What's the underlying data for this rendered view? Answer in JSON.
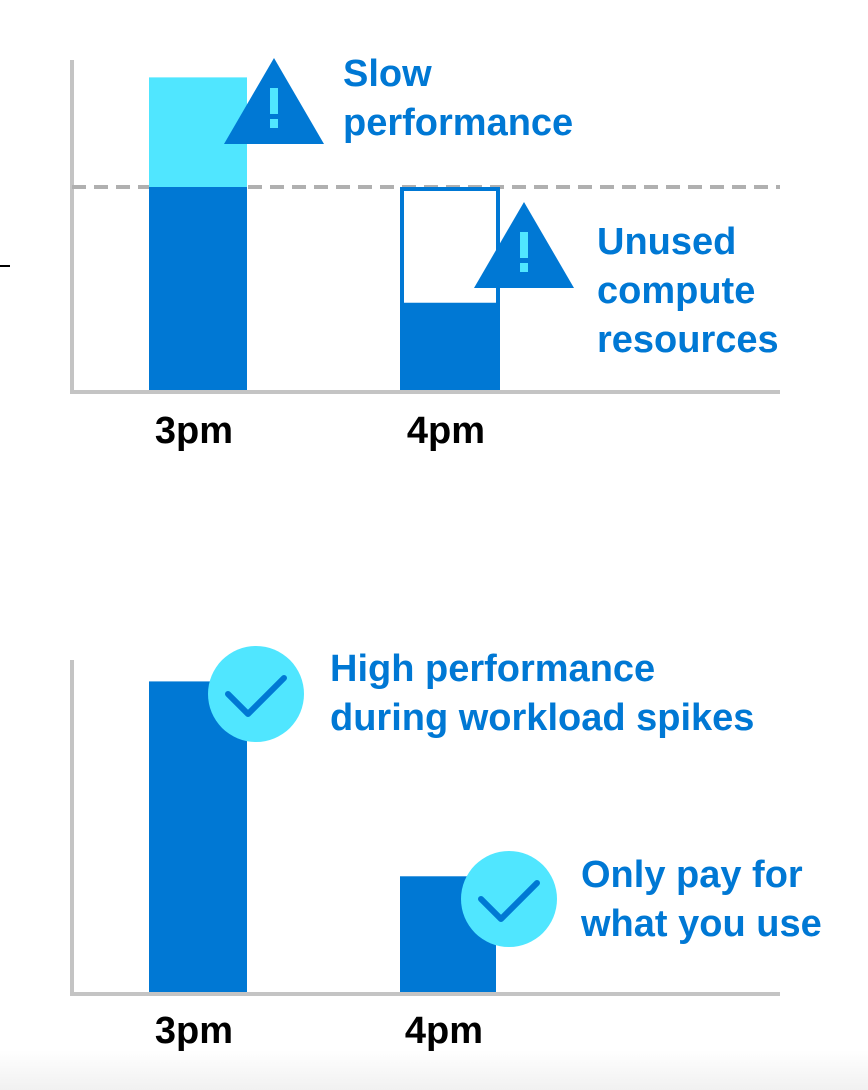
{
  "colors": {
    "blue": "#0078d4",
    "light_blue": "#50e6ff",
    "axis": "#c4c4c4",
    "dashed_line": "#b0b0b0",
    "text": "#000000"
  },
  "icons": {
    "warning": "warning-triangle-icon",
    "check": "checkmark-circle-icon"
  },
  "chart_data": [
    {
      "type": "bar",
      "categories": [
        "3pm",
        "4pm"
      ],
      "capacity_line": 1.0,
      "series": [
        {
          "values": [
            1.0,
            0.42
          ]
        },
        {
          "values": [
            0.54,
            0.0
          ]
        }
      ],
      "unused_capacity": [
        0.0,
        0.58
      ],
      "ylim": [
        0,
        1.55
      ],
      "grid": false,
      "annotations": [
        {
          "text": [
            "Slow",
            "performance"
          ],
          "icon": "warning-triangle-icon",
          "category": "3pm"
        },
        {
          "text": [
            "Unused",
            "compute",
            "resources"
          ],
          "icon": "warning-triangle-icon",
          "category": "4pm"
        }
      ]
    },
    {
      "type": "bar",
      "categories": [
        "3pm",
        "4pm"
      ],
      "series": [
        {
          "values": [
            1.53,
            0.57
          ]
        }
      ],
      "ylim": [
        0,
        1.55
      ],
      "grid": false,
      "annotations": [
        {
          "text": [
            "High performance",
            "during workload spikes"
          ],
          "icon": "checkmark-circle-icon",
          "category": "3pm"
        },
        {
          "text": [
            "Only pay for",
            "what you use"
          ],
          "icon": "checkmark-circle-icon",
          "category": "4pm"
        }
      ]
    }
  ]
}
